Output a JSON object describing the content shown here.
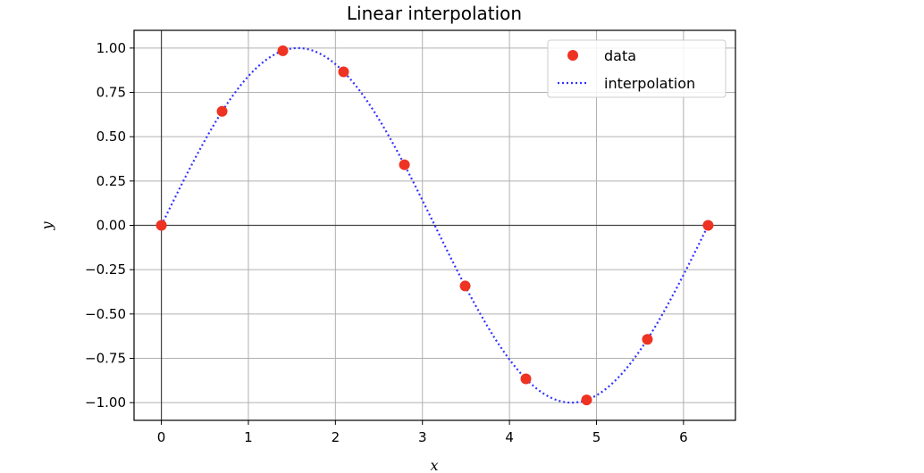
{
  "chart_data": {
    "type": "line",
    "title": "Linear interpolation",
    "xlabel": "x",
    "ylabel": "y",
    "xlim": [
      -0.314,
      6.597
    ],
    "ylim": [
      -1.1,
      1.1
    ],
    "xticks": [
      0,
      1,
      2,
      3,
      4,
      5,
      6
    ],
    "xtick_labels": [
      "0",
      "1",
      "2",
      "3",
      "4",
      "5",
      "6"
    ],
    "yticks": [
      1.0,
      0.75,
      0.5,
      0.25,
      0.0,
      -0.25,
      -0.5,
      -0.75,
      -1.0
    ],
    "ytick_labels": [
      "1.00",
      "0.75",
      "0.50",
      "0.25",
      "0.00",
      "−0.25",
      "−0.50",
      "−0.75",
      "−1.00"
    ],
    "grid": true,
    "zero_lines": true,
    "legend_position": "top-right",
    "series": [
      {
        "name": "data",
        "kind": "scatter",
        "color": "#ee3322",
        "x": [
          0.0,
          0.698,
          1.396,
          2.094,
          2.793,
          3.491,
          4.189,
          4.887,
          5.585,
          6.283
        ],
        "y": [
          0.0,
          0.643,
          0.985,
          0.866,
          0.342,
          -0.342,
          -0.866,
          -0.985,
          -0.643,
          0.0
        ]
      },
      {
        "name": "interpolation",
        "kind": "line",
        "style": "dotted",
        "color": "#3333ff",
        "function": "sin",
        "x_range": [
          0,
          6.283
        ]
      }
    ]
  }
}
